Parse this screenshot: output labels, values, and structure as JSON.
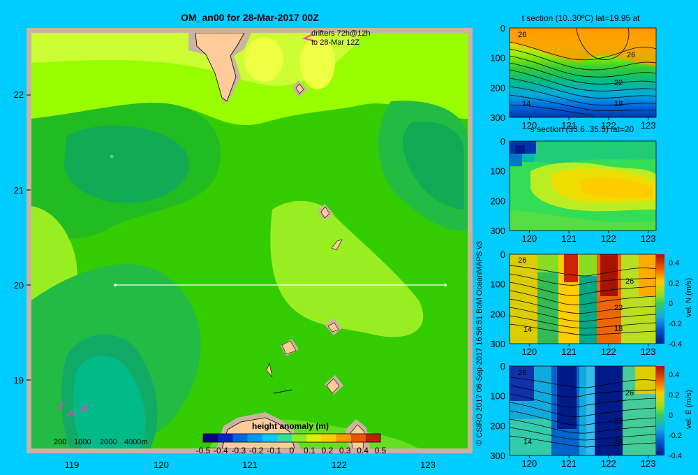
{
  "main_title": "OM_an00 for 28-Mar-2017 00Z",
  "drifters": {
    "line1": "drifters 72h@12h",
    "line2": "to 28-Mar 12Z"
  },
  "depth_legend": [
    "200",
    "1000",
    "2000",
    "4000m"
  ],
  "credit": "© CSIRO 2017   06-Sep-2017 16:56:51 BoM OceanMAPS v3",
  "colorbar": {
    "title": "height anomaly (m)",
    "ticks": [
      "-0.5",
      "-0.4",
      "-0.3",
      "-0.2",
      "-0.1",
      "0",
      "0.1",
      "0.2",
      "0.3",
      "0.4",
      "0.5"
    ]
  },
  "colors": {
    "background": "#00ccff",
    "land": "#ffcc99",
    "shelf": "#ccb3a0",
    "section_line": "#ffffff",
    "drifter": "#ff33cc"
  },
  "chart_data": [
    {
      "type": "heatmap",
      "title": "OM_an00 for 28-Mar-2017 00Z",
      "variable": "height anomaly (m)",
      "x_ticks": [
        "119",
        "120",
        "121",
        "122",
        "123"
      ],
      "y_ticks": [
        "19",
        "20",
        "21",
        "22"
      ],
      "xlim": [
        118.5,
        123.5
      ],
      "ylim": [
        18.25,
        22.7
      ],
      "color_range": [
        -0.5,
        0.5
      ],
      "section_line": {
        "lat": 20,
        "lon_start": 119.5,
        "lon_end": 123.2
      },
      "grid": false
    },
    {
      "type": "heatmap",
      "title": "t section (10..30ºC) lat=19.95 at",
      "x_ticks": [
        "120",
        "121",
        "122",
        "123"
      ],
      "y_ticks": [
        "0",
        "100",
        "200",
        "300"
      ],
      "xlim": [
        119.5,
        123.2
      ],
      "ylim": [
        300,
        0
      ],
      "contour_labels": [
        "26",
        "26",
        "22",
        "18",
        "14"
      ]
    },
    {
      "type": "heatmap",
      "title": "s section (33.6..35.5) lat=20",
      "x_ticks": [
        "120",
        "121",
        "122",
        "123"
      ],
      "y_ticks": [
        "0",
        "100",
        "200",
        "300"
      ],
      "xlim": [
        119.5,
        123.2
      ],
      "ylim": [
        300,
        0
      ]
    },
    {
      "type": "heatmap",
      "variable": "vel. N (m/s)",
      "x_ticks": [
        "120",
        "121",
        "122",
        "123"
      ],
      "y_ticks": [
        "0",
        "100",
        "200",
        "300"
      ],
      "xlim": [
        119.5,
        123.2
      ],
      "ylim": [
        300,
        0
      ],
      "contour_labels": [
        "26",
        "26",
        "22",
        "18",
        "14"
      ],
      "colorbar_ticks": [
        "0.4",
        "0.2",
        "0",
        "-0.2",
        "-0.4"
      ],
      "color_range": [
        -0.4,
        0.4
      ]
    },
    {
      "type": "heatmap",
      "variable": "vel. E (m/s)",
      "x_ticks": [
        "120",
        "121",
        "122",
        "123"
      ],
      "y_ticks": [
        "0",
        "100",
        "200",
        "300"
      ],
      "xlim": [
        119.5,
        123.2
      ],
      "ylim": [
        300,
        0
      ],
      "contour_labels": [
        "26",
        "26",
        "22",
        "18",
        "14"
      ],
      "colorbar_ticks": [
        "0.4",
        "0.2",
        "0",
        "-0.2",
        "-0.4"
      ],
      "color_range": [
        -0.4,
        0.4
      ]
    }
  ]
}
